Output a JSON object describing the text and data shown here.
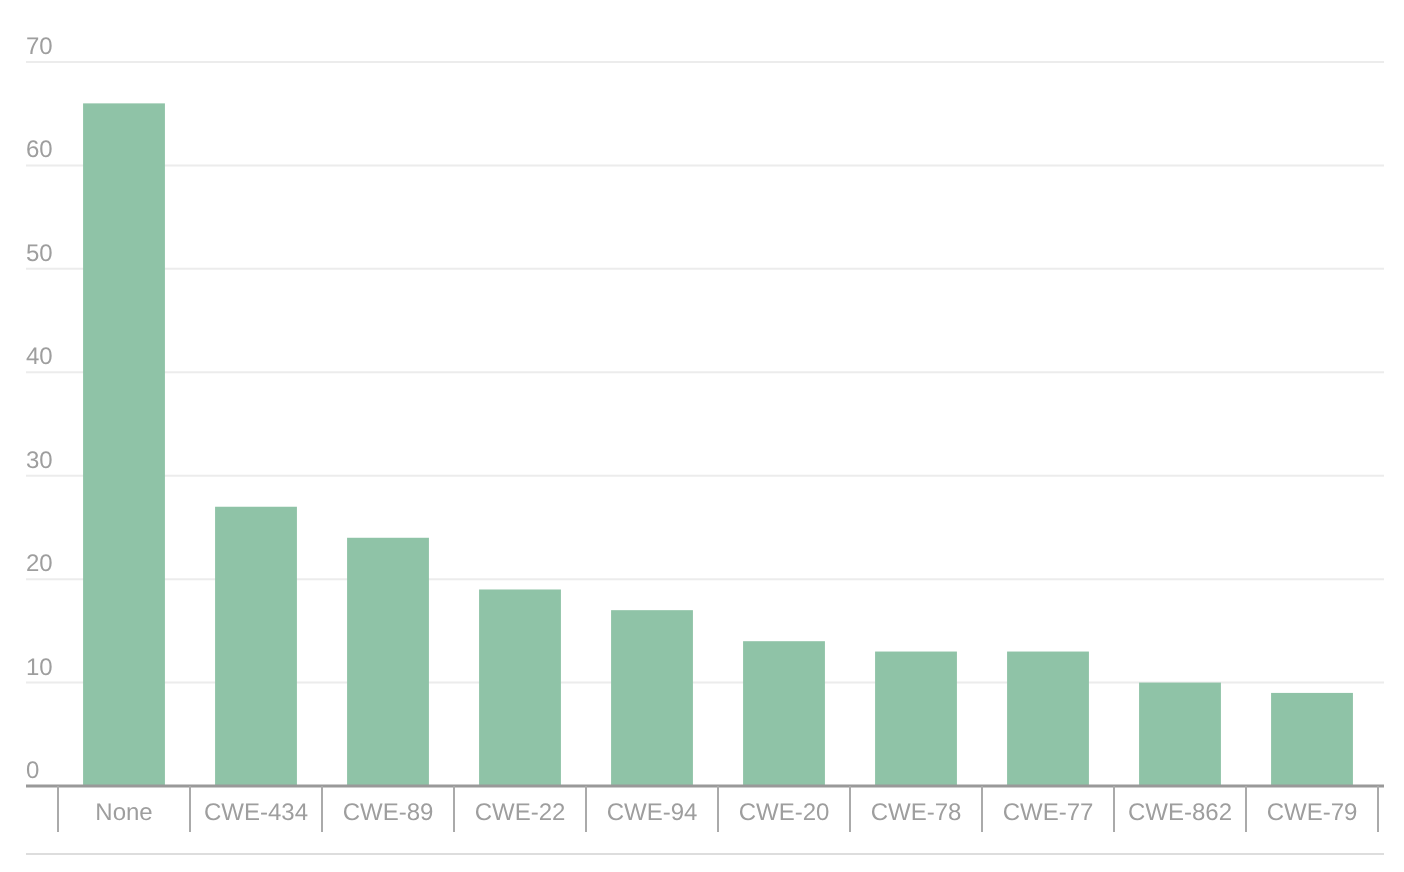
{
  "chart_data": {
    "type": "bar",
    "categories": [
      "None",
      "CWE-434",
      "CWE-89",
      "CWE-22",
      "CWE-94",
      "CWE-20",
      "CWE-78",
      "CWE-77",
      "CWE-862",
      "CWE-79"
    ],
    "values": [
      66,
      27,
      24,
      19,
      17,
      14,
      13,
      13,
      10,
      9
    ],
    "color": "#8fc3a7",
    "ylim": [
      0,
      70
    ],
    "yticks": [
      0,
      10,
      20,
      30,
      40,
      50,
      60,
      70
    ],
    "grid": "y"
  }
}
